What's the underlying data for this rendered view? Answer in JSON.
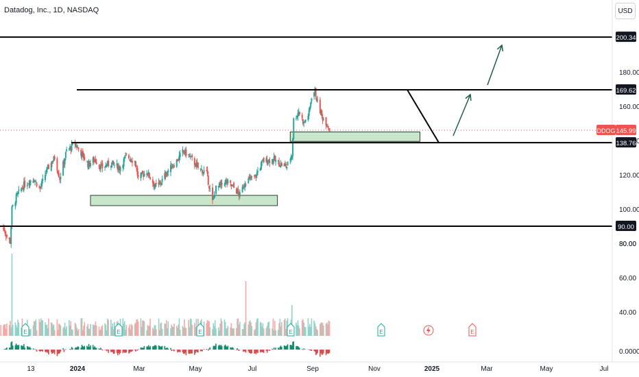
{
  "header": {
    "title": "Datadog, Inc., 1D, NASDAQ",
    "currency": "USD"
  },
  "chart_data": {
    "type": "candlestick",
    "symbol": "DDOG",
    "interval": "1D",
    "exchange": "NASDAQ",
    "ylim": [
      76,
      212
    ],
    "y_ticks": [
      80,
      100,
      120,
      140,
      160,
      180
    ],
    "y_tick_labels": [
      "80.00",
      "100.00",
      "120.00",
      "140.00",
      "160.00",
      "180.00"
    ],
    "x_tick_labels": [
      "13",
      "2024",
      "Mar",
      "May",
      "Jul",
      "Sep",
      "Nov",
      "2025",
      "Mar",
      "May",
      "Jul"
    ],
    "last_price": {
      "symbol": "DDOG",
      "value": "145.99",
      "color": "#ef5350"
    },
    "horizontal_levels": [
      {
        "value": 200.34,
        "label": "200.34"
      },
      {
        "value": 169.62,
        "label": "169.62"
      },
      {
        "value": 138.76,
        "label": "138.76"
      },
      {
        "value": 90.0,
        "label": "90.00"
      }
    ],
    "zones": [
      {
        "name": "support-zone",
        "y_low": 102,
        "y_high": 108,
        "from": "2024-03-15",
        "to": "2024-10-20"
      },
      {
        "name": "retest-zone",
        "y_low": 139.5,
        "y_high": 145,
        "from": "2024-11-04",
        "to": "2025-04-05"
      }
    ],
    "volume_axis": {
      "labels": [
        "40.00",
        "60.00",
        "80.00"
      ],
      "zero_label": "0.0000"
    },
    "events": [
      "E",
      "E",
      "E",
      "E",
      "E",
      "E"
    ],
    "colors": {
      "up": "#26a69a",
      "down": "#ef5350",
      "level": "#000000",
      "zone_fill": "#c8e6c9",
      "arrow": "#1b5e4b",
      "label_bg": "#131722"
    },
    "price_path": [
      [
        "2023-12-01",
        90
      ],
      [
        "2023-12-05",
        88
      ],
      [
        "2023-12-08",
        84
      ],
      [
        "2023-12-12",
        81
      ],
      [
        "2023-12-14",
        100
      ],
      [
        "2023-12-20",
        108
      ],
      [
        "2023-12-28",
        114
      ],
      [
        "2024-01-08",
        118
      ],
      [
        "2024-01-16",
        112
      ],
      [
        "2024-01-24",
        123
      ],
      [
        "2024-02-02",
        130
      ],
      [
        "2024-02-08",
        118
      ],
      [
        "2024-02-16",
        134
      ],
      [
        "2024-02-26",
        138
      ],
      [
        "2024-03-05",
        132
      ],
      [
        "2024-03-12",
        126
      ],
      [
        "2024-03-20",
        129
      ],
      [
        "2024-03-28",
        124
      ],
      [
        "2024-04-08",
        127
      ],
      [
        "2024-04-18",
        124
      ],
      [
        "2024-04-26",
        131
      ],
      [
        "2024-05-06",
        128
      ],
      [
        "2024-05-10",
        118
      ],
      [
        "2024-05-20",
        122
      ],
      [
        "2024-05-30",
        113
      ],
      [
        "2024-06-06",
        116
      ],
      [
        "2024-06-13",
        122
      ],
      [
        "2024-06-24",
        128
      ],
      [
        "2024-07-02",
        134
      ],
      [
        "2024-07-10",
        130
      ],
      [
        "2024-07-19",
        124
      ],
      [
        "2024-07-29",
        121
      ],
      [
        "2024-08-05",
        104
      ],
      [
        "2024-08-09",
        112
      ],
      [
        "2024-08-20",
        116
      ],
      [
        "2024-08-29",
        113
      ],
      [
        "2024-09-06",
        108
      ],
      [
        "2024-09-12",
        116
      ],
      [
        "2024-09-24",
        119
      ],
      [
        "2024-10-03",
        128
      ],
      [
        "2024-10-15",
        129
      ],
      [
        "2024-10-24",
        126
      ],
      [
        "2024-10-31",
        125
      ],
      [
        "2024-11-06",
        132
      ],
      [
        "2024-11-08",
        152
      ],
      [
        "2024-11-14",
        157
      ],
      [
        "2024-11-20",
        150
      ],
      [
        "2024-11-26",
        156
      ],
      [
        "2024-11-29",
        166
      ],
      [
        "2024-12-03",
        169
      ],
      [
        "2024-12-06",
        162
      ],
      [
        "2024-12-11",
        154
      ],
      [
        "2024-12-17",
        150
      ],
      [
        "2024-12-20",
        146
      ]
    ]
  }
}
